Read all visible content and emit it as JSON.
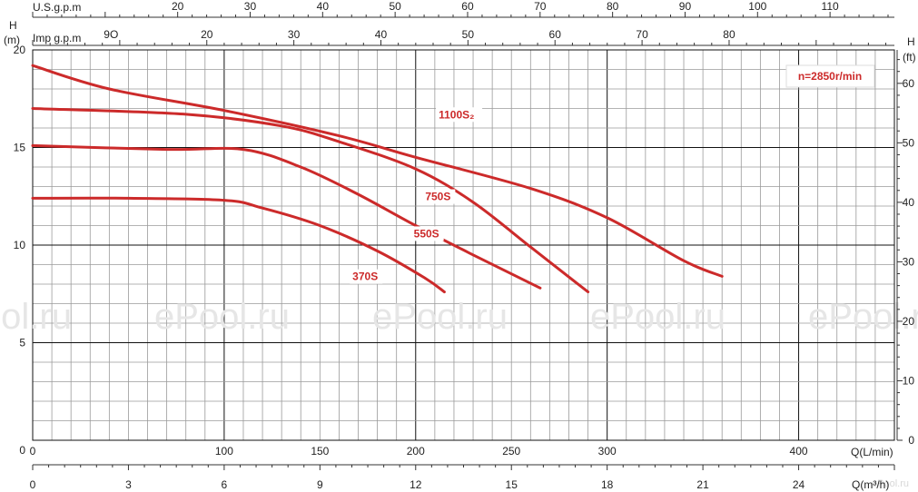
{
  "chart_data": {
    "type": "line",
    "speed_badge": "n=2850r/min",
    "watermark": "ePool.ru",
    "x_axis": {
      "label": "Q(L/min)",
      "range": [
        0,
        450
      ],
      "ticks": [
        0,
        100,
        150,
        200,
        250,
        300,
        400
      ]
    },
    "x_axis_m3h": {
      "label": "Q(m³/h)",
      "ticks": [
        0,
        3,
        6,
        9,
        12,
        15,
        18,
        21,
        24
      ]
    },
    "x_axis_usgpm": {
      "label": "U.S.g.p.m",
      "ticks": [
        20,
        30,
        40,
        50,
        60,
        70,
        80,
        90,
        100,
        110
      ]
    },
    "x_axis_impgpm": {
      "label": "Imp g.p.m",
      "ticks": [
        "20",
        "30",
        "40",
        "50",
        "60",
        "70",
        "80",
        "9O"
      ]
    },
    "y_axis_m": {
      "label": "H",
      "unit": "(m)",
      "range": [
        0,
        20
      ],
      "ticks": [
        5,
        10,
        15,
        20
      ]
    },
    "y_axis_ft": {
      "label": "H",
      "unit": "(ft)",
      "ticks": [
        0,
        10,
        20,
        30,
        40,
        50,
        60
      ]
    },
    "grid": true,
    "series": [
      {
        "name": "1100S₂",
        "color": "#cc2a2a",
        "points": [
          [
            0,
            19.2
          ],
          [
            40,
            18.0
          ],
          [
            100,
            16.9
          ],
          [
            160,
            15.6
          ],
          [
            200,
            14.5
          ],
          [
            260,
            12.9
          ],
          [
            300,
            11.4
          ],
          [
            340,
            9.2
          ],
          [
            360,
            8.4
          ]
        ]
      },
      {
        "name": "750S",
        "color": "#cc2a2a",
        "points": [
          [
            0,
            17.0
          ],
          [
            80,
            16.7
          ],
          [
            130,
            16.1
          ],
          [
            160,
            15.3
          ],
          [
            200,
            13.9
          ],
          [
            230,
            12.2
          ],
          [
            260,
            9.9
          ],
          [
            290,
            7.6
          ]
        ]
      },
      {
        "name": "550S",
        "color": "#cc2a2a",
        "points": [
          [
            0,
            15.1
          ],
          [
            70,
            14.9
          ],
          [
            110,
            14.9
          ],
          [
            140,
            14.0
          ],
          [
            170,
            12.6
          ],
          [
            200,
            11.0
          ],
          [
            230,
            9.5
          ],
          [
            265,
            7.8
          ]
        ]
      },
      {
        "name": "370S",
        "color": "#cc2a2a",
        "points": [
          [
            0,
            12.4
          ],
          [
            50,
            12.4
          ],
          [
            100,
            12.3
          ],
          [
            120,
            11.9
          ],
          [
            150,
            11.0
          ],
          [
            180,
            9.7
          ],
          [
            205,
            8.3
          ],
          [
            215,
            7.6
          ]
        ]
      }
    ],
    "labels": [
      {
        "text": "1100S₂",
        "x": 212,
        "y": 16.5
      },
      {
        "text": "750S",
        "x": 205,
        "y": 12.3
      },
      {
        "text": "550S",
        "x": 199,
        "y": 10.4
      },
      {
        "text": "370S",
        "x": 167,
        "y": 8.2
      }
    ]
  }
}
